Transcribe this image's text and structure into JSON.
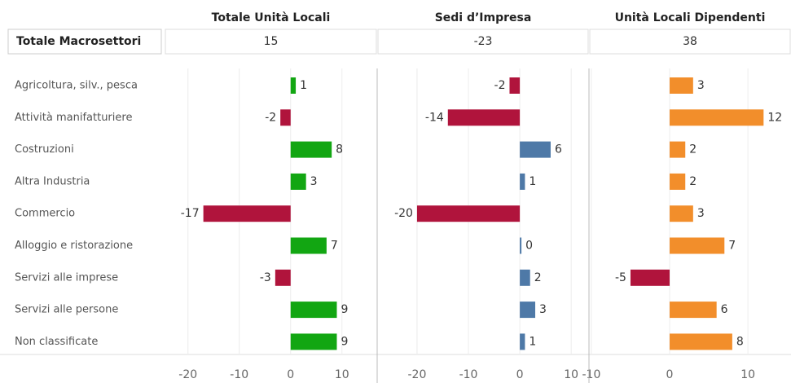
{
  "row_header": "Totale Macrosettori",
  "categories": [
    "Agricoltura, silv., pesca",
    "Attività manifatturiere",
    "Costruzioni",
    "Altra Industria",
    "Commercio",
    "Alloggio e ristorazione",
    "Servizi alle imprese",
    "Servizi alle persone",
    "Non classificate"
  ],
  "chart_data": [
    {
      "type": "bar",
      "title": "Totale Unità Locali",
      "total": 15,
      "values": [
        1,
        -2,
        8,
        3,
        -17,
        7,
        -3,
        9,
        9
      ],
      "color": "#12a612",
      "negative_color": "#b0143c",
      "xlim": [
        -24.4,
        16.7
      ],
      "xticks": [
        -20,
        -10,
        0,
        10
      ],
      "grid": true
    },
    {
      "type": "bar",
      "title": "Sedi d’Impresa",
      "total": -23,
      "values": [
        -2,
        -14,
        6,
        1,
        -20,
        0,
        2,
        3,
        1
      ],
      "color": "#4e79a7",
      "negative_color": "#b0143c",
      "xlim": [
        -27.6,
        13.3
      ],
      "xticks": [
        -20,
        -10,
        0,
        10
      ],
      "grid": true
    },
    {
      "type": "bar",
      "title": "Unità Locali Dipendenti",
      "total": 38,
      "values": [
        3,
        12,
        2,
        2,
        3,
        7,
        -5,
        6,
        8
      ],
      "color": "#f28e2b",
      "negative_color": "#b0143c",
      "xlim": [
        -10.2,
        15.4
      ],
      "xticks": [
        -10,
        0,
        10
      ],
      "grid": true
    }
  ]
}
